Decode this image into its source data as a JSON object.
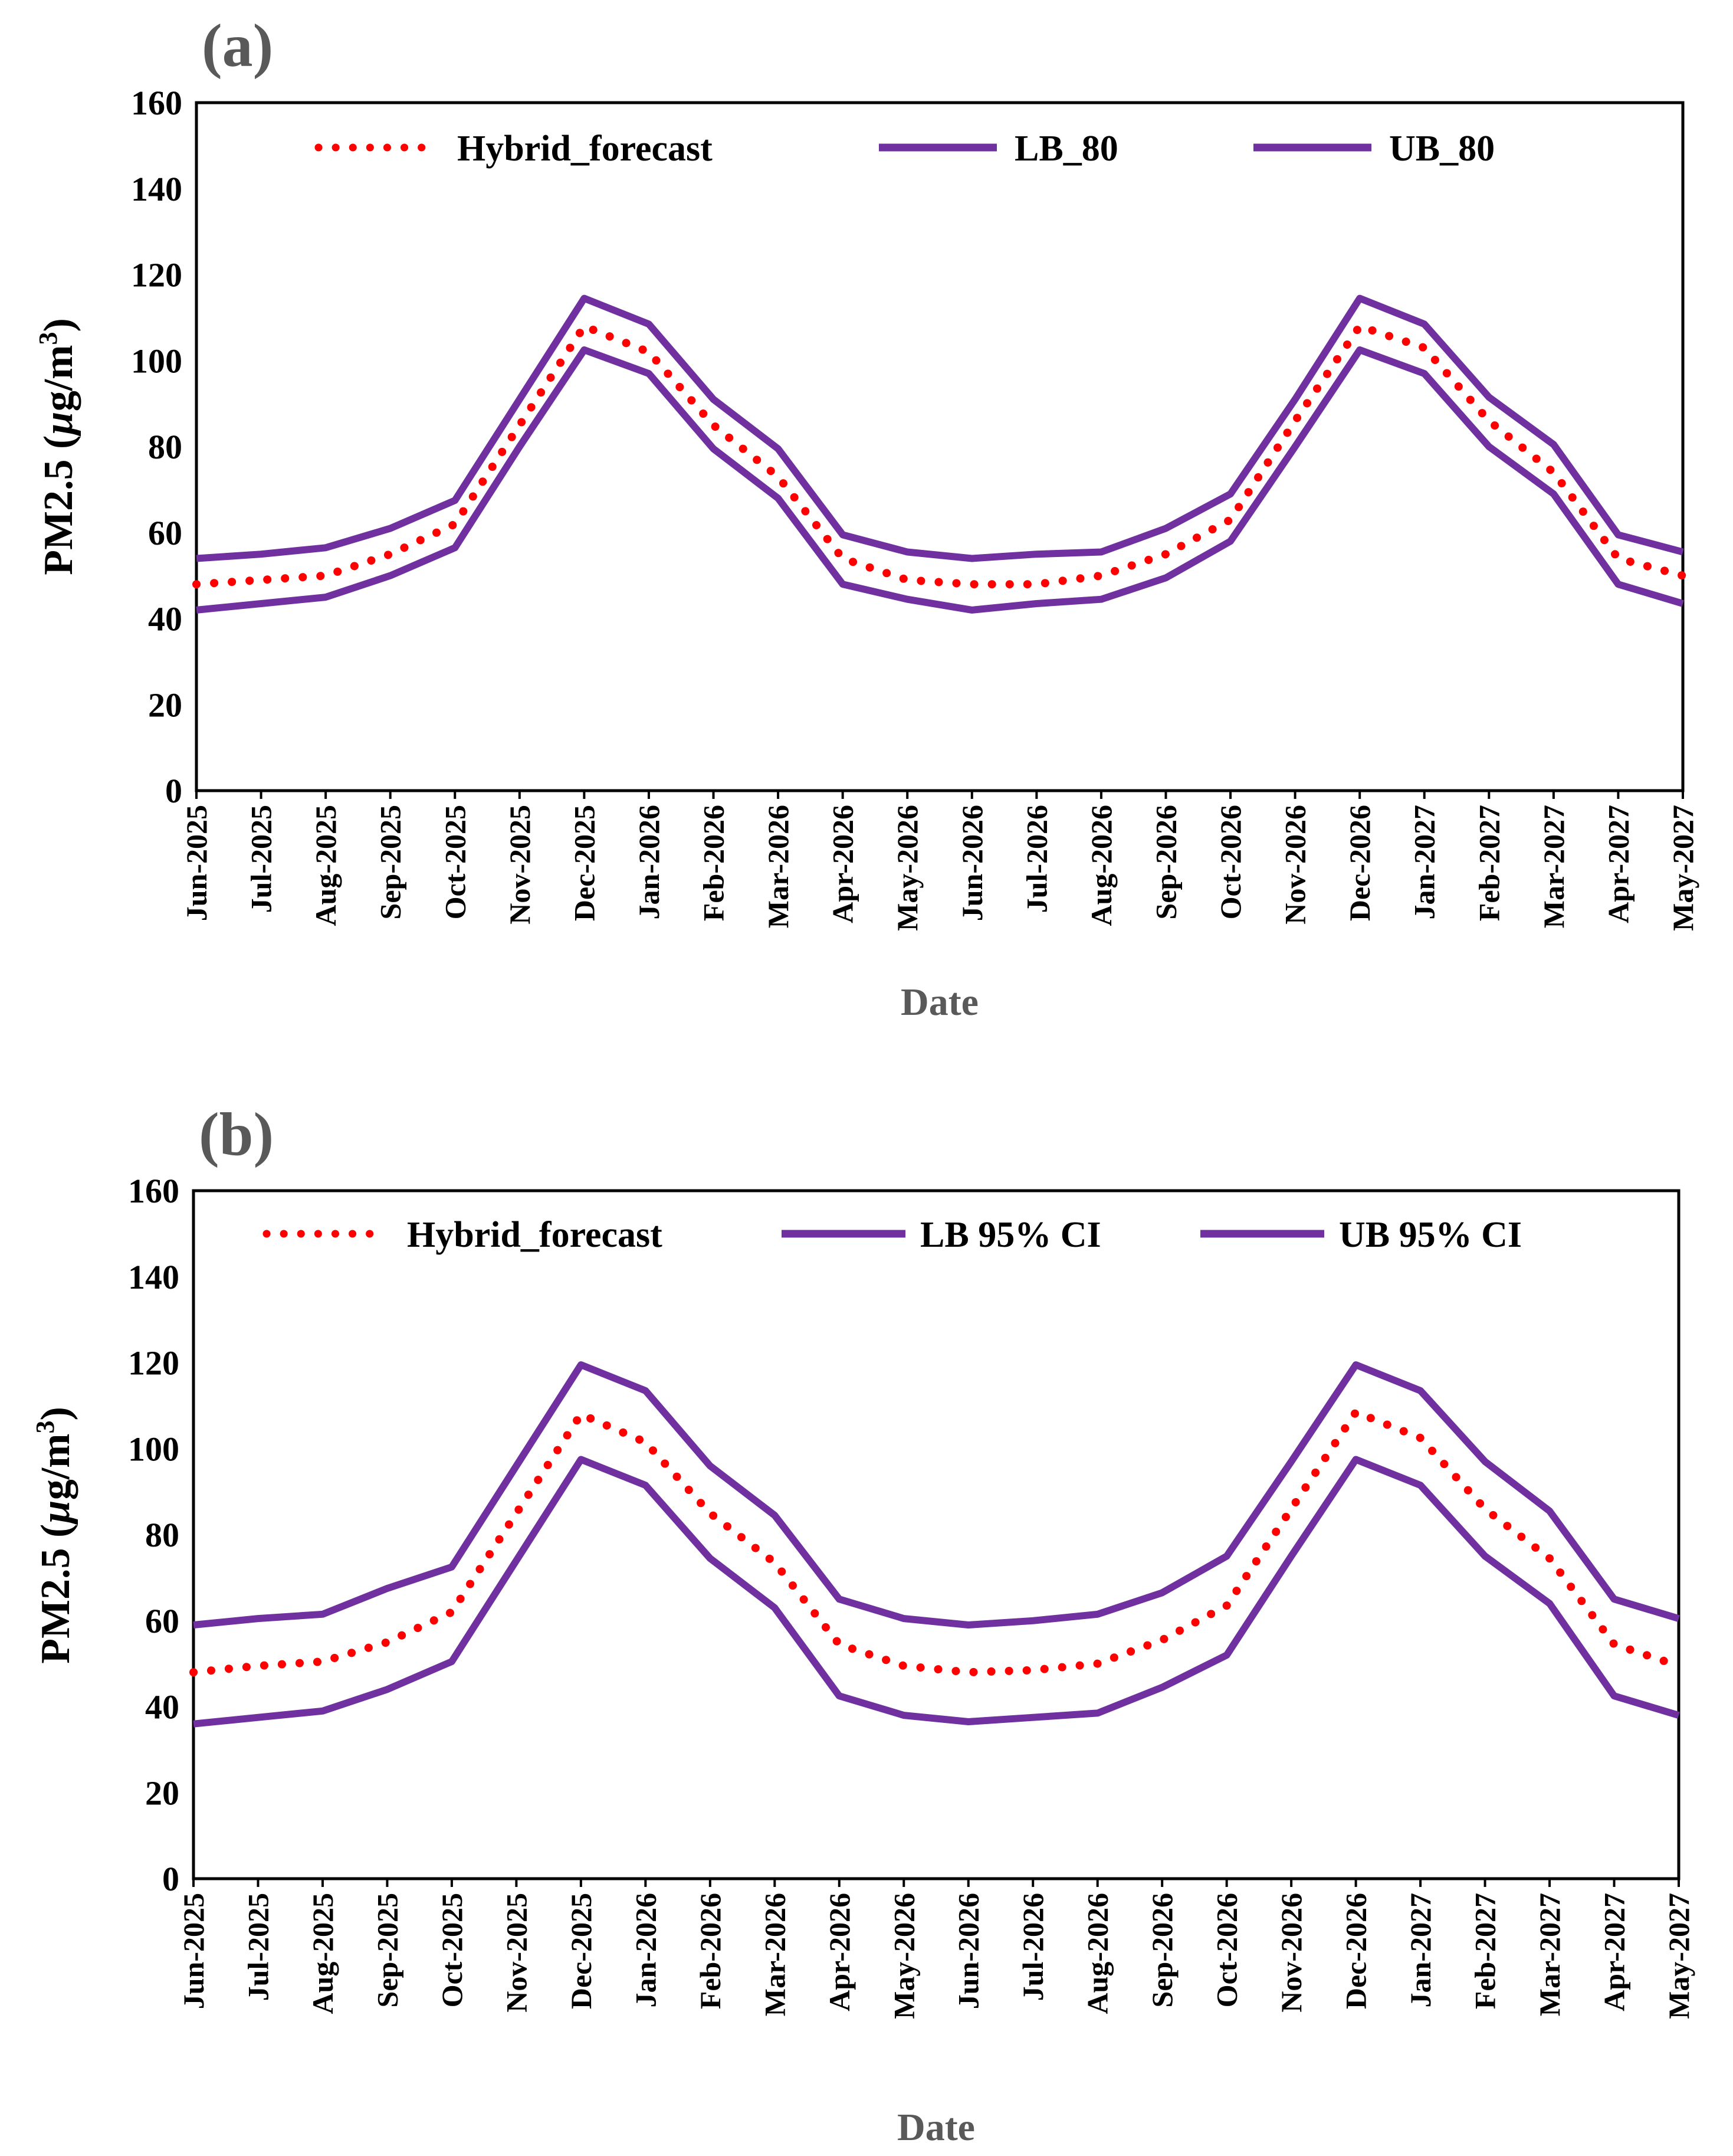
{
  "chart_data": [
    {
      "type": "line",
      "panel_label": "(a)",
      "xlabel": "Date",
      "ylabel": "PM2.5 (µg/m³)",
      "ylabel_main": "PM2.5 (",
      "ylabel_mu": "µ",
      "ylabel_unit": "g/m",
      "ylabel_sup": "3",
      "ylabel_close": ")",
      "ylim": [
        0,
        160
      ],
      "yticks": [
        "0",
        "20",
        "40",
        "60",
        "80",
        "100",
        "120",
        "140",
        "160"
      ],
      "grid": false,
      "legend_position": "top",
      "categories": [
        "Jun-2025",
        "Jul-2025",
        "Aug-2025",
        "Sep-2025",
        "Oct-2025",
        "Nov-2025",
        "Dec-2025",
        "Jan-2026",
        "Feb-2026",
        "Mar-2026",
        "Apr-2026",
        "May-2026",
        "Jun-2026",
        "Jul-2026",
        "Aug-2026",
        "Sep-2026",
        "Oct-2026",
        "Nov-2026",
        "Dec-2026",
        "Jan-2027",
        "Feb-2027",
        "Mar-2027",
        "Apr-2027",
        "May-2027"
      ],
      "series": [
        {
          "name": "Hybrid_forecast",
          "style": "dotted",
          "color": "#ff0000",
          "values": [
            48,
            49,
            50,
            55,
            62,
            85,
            108,
            102,
            85,
            73,
            54,
            49,
            48,
            48,
            50,
            55,
            63,
            86,
            108,
            103,
            86,
            74,
            54,
            50
          ]
        },
        {
          "name": "LB_80",
          "style": "solid",
          "color": "#7030a0",
          "values": [
            42,
            43.5,
            45,
            50,
            56.5,
            80,
            102.5,
            97,
            79.5,
            68,
            48,
            44.5,
            42,
            43.5,
            44.5,
            49.5,
            58,
            80,
            102.5,
            97,
            80,
            69,
            48,
            43.5
          ]
        },
        {
          "name": "UB_80",
          "style": "solid",
          "color": "#7030a0",
          "values": [
            54,
            55,
            56.5,
            61,
            67.5,
            91,
            114.5,
            108.5,
            91,
            79.5,
            59.5,
            55.5,
            54,
            55,
            55.5,
            61,
            69,
            91,
            114.5,
            108.5,
            91.5,
            80.5,
            59.5,
            55.5
          ]
        }
      ]
    },
    {
      "type": "line",
      "panel_label": "(b)",
      "xlabel": "Date",
      "ylabel": "PM2.5 (µg/m³)",
      "ylabel_main": "PM2.5 (",
      "ylabel_mu": "µ",
      "ylabel_unit": "g/m",
      "ylabel_sup": "3",
      "ylabel_close": ")",
      "ylim": [
        0,
        160
      ],
      "yticks": [
        "0",
        "20",
        "40",
        "60",
        "80",
        "100",
        "120",
        "140",
        "160"
      ],
      "grid": false,
      "legend_position": "top",
      "categories": [
        "Jun-2025",
        "Jul-2025",
        "Aug-2025",
        "Sep-2025",
        "Oct-2025",
        "Nov-2025",
        "Dec-2025",
        "Jan-2026",
        "Feb-2026",
        "Mar-2026",
        "Apr-2026",
        "May-2026",
        "Jun-2026",
        "Jul-2026",
        "Aug-2026",
        "Sep-2026",
        "Oct-2026",
        "Nov-2026",
        "Dec-2026",
        "Jan-2027",
        "Feb-2027",
        "Mar-2027",
        "Apr-2027",
        "May-2027"
      ],
      "series": [
        {
          "name": "Hybrid_forecast",
          "style": "dotted",
          "color": "#ff0000",
          "values": [
            48,
            49.5,
            50.5,
            55,
            62,
            85,
            108,
            101.5,
            85,
            73.5,
            54.5,
            49.5,
            48,
            48.5,
            50,
            55.5,
            63.5,
            86,
            108.5,
            102.5,
            86,
            74.5,
            54.5,
            49.5
          ]
        },
        {
          "name": "LB 95% CI",
          "style": "solid",
          "color": "#7030a0",
          "values": [
            36,
            37.5,
            39,
            44,
            50.5,
            74,
            97.5,
            91.5,
            74.5,
            63,
            42.5,
            38,
            36.5,
            37.5,
            38.5,
            44.5,
            52,
            75,
            97.5,
            91.5,
            75,
            64,
            42.5,
            38
          ]
        },
        {
          "name": "UB 95% CI",
          "style": "solid",
          "color": "#7030a0",
          "values": [
            59,
            60.5,
            61.5,
            67.5,
            72.5,
            96,
            119.5,
            113.5,
            96,
            84.5,
            65,
            60.5,
            59,
            60,
            61.5,
            66.5,
            75,
            97,
            119.5,
            113.5,
            97,
            85.5,
            65,
            60.5
          ]
        }
      ]
    }
  ]
}
